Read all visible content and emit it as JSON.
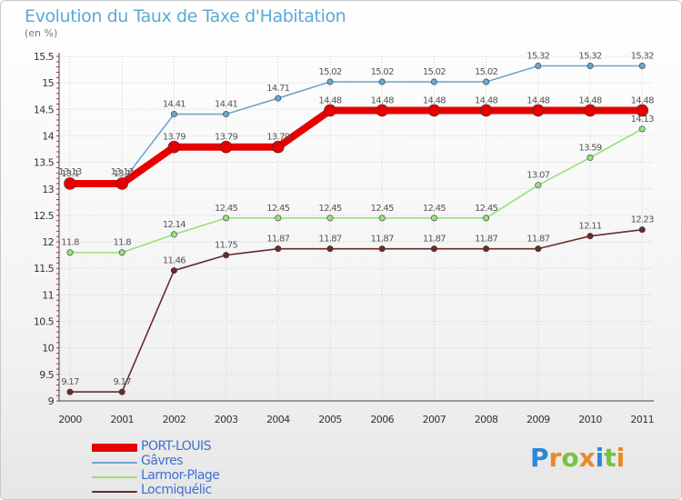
{
  "title": "Evolution du Taux de Taxe d'Habitation",
  "unit_label": "(en %)",
  "logo": {
    "letters": [
      "P",
      "r",
      "o",
      "x",
      "i",
      "t",
      "i"
    ],
    "colors": [
      "#2e86d6",
      "#e8892a",
      "#7ac143",
      "#e8892a",
      "#2e86d6",
      "#7ac143",
      "#e8892a"
    ]
  },
  "chart_data": {
    "type": "line",
    "title": "Evolution du Taux de Taxe d'Habitation",
    "ylabel": "(en %)",
    "xlabel": "",
    "ylim": [
      9,
      15.5
    ],
    "yticks": [
      "9",
      "9.5",
      "10",
      "10.5",
      "11",
      "11.5",
      "12",
      "12.5",
      "13",
      "13.5",
      "14",
      "14.5",
      "15",
      "15.5"
    ],
    "categories": [
      "2000",
      "2001",
      "2002",
      "2003",
      "2004",
      "2005",
      "2006",
      "2007",
      "2008",
      "2009",
      "2010",
      "2011"
    ],
    "series": [
      {
        "name": "Locmiquélic",
        "color": "#6b2a2a",
        "values": [
          9.17,
          9.17,
          11.46,
          11.75,
          11.87,
          11.87,
          11.87,
          11.87,
          11.87,
          11.87,
          12.11,
          12.23
        ]
      },
      {
        "name": "Larmor-Plage",
        "color": "#99e07a",
        "values": [
          11.8,
          11.8,
          12.14,
          12.45,
          12.45,
          12.45,
          12.45,
          12.45,
          12.45,
          13.07,
          13.59,
          14.13
        ]
      },
      {
        "name": "Gâvres",
        "color": "#6ca6cc",
        "values": [
          13.13,
          13.13,
          14.41,
          14.41,
          14.71,
          15.02,
          15.02,
          15.02,
          15.02,
          15.32,
          15.32,
          15.32
        ]
      },
      {
        "name": "PORT-LOUIS",
        "color": "#e80000",
        "values": [
          13.1,
          13.1,
          13.79,
          13.79,
          13.79,
          14.48,
          14.48,
          14.48,
          14.48,
          14.48,
          14.48,
          14.48
        ]
      }
    ],
    "legend": [
      "PORT-LOUIS",
      "Gâvres",
      "Larmor-Plage",
      "Locmiquélic"
    ],
    "legend_position": "bottom-left"
  }
}
